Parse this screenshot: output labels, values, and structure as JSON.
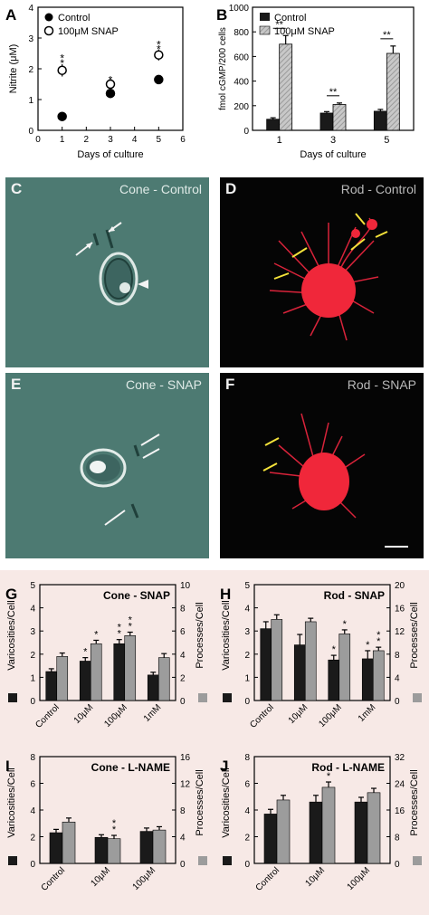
{
  "colors": {
    "bar_black": "#1a1a1a",
    "bar_gray": "#9c9c9c",
    "bar_hatch": "#9a9a9a",
    "phase_bg": "#4d7a72",
    "fluor_bg": "#050505",
    "fluor_cell": "#f0273a",
    "arrow_yellow": "#f4e23a",
    "panel_bg_pink": "#f7e9e6"
  },
  "micrographs": [
    {
      "letter": "C",
      "title": "Cone - Control",
      "style": "phase"
    },
    {
      "letter": "D",
      "title": "Rod - Control",
      "style": "fluor"
    },
    {
      "letter": "E",
      "title": "Cone - SNAP",
      "style": "phase"
    },
    {
      "letter": "F",
      "title": "Rod - SNAP",
      "style": "fluor"
    }
  ],
  "chart_data": [
    {
      "panel": "A",
      "type": "scatter",
      "xlabel": "Days of culture",
      "ylabel": "Nitrite (μM)",
      "xlim": [
        0,
        6
      ],
      "ylim": [
        0,
        4
      ],
      "xticks": [
        "0",
        "1",
        "2",
        "3",
        "4",
        "5",
        "6"
      ],
      "yticks": [
        "0",
        "1",
        "2",
        "3",
        "4"
      ],
      "legend": [
        "Control",
        "100μM SNAP"
      ],
      "series": [
        {
          "name": "Control",
          "marker": "filled",
          "x": [
            1,
            3,
            5
          ],
          "y": [
            0.45,
            1.2,
            1.65
          ],
          "err": [
            0.12,
            0.1,
            0.12
          ]
        },
        {
          "name": "100μM SNAP",
          "marker": "open",
          "x": [
            1,
            3,
            5
          ],
          "y": [
            1.95,
            1.5,
            2.45
          ],
          "err": [
            0.2,
            0.12,
            0.18
          ]
        }
      ],
      "annotations": [
        {
          "x": 1,
          "y": 2.3,
          "text": "*"
        },
        {
          "x": 1,
          "y": 2.45,
          "text": "*"
        },
        {
          "x": 3,
          "y": 1.75,
          "text": "*"
        },
        {
          "x": 5,
          "y": 2.75,
          "text": "*"
        },
        {
          "x": 5,
          "y": 2.9,
          "text": "*"
        }
      ]
    },
    {
      "panel": "B",
      "type": "bar",
      "xlabel": "Days of culture",
      "ylabel": "fmol cGMP/200 cells",
      "ylim": [
        0,
        1000
      ],
      "yticks": [
        "0",
        "200",
        "400",
        "600",
        "800",
        "1000"
      ],
      "categories": [
        "1",
        "3",
        "5"
      ],
      "legend": [
        "Control",
        "100μM SNAP"
      ],
      "series": [
        {
          "name": "Control",
          "values": [
            90,
            140,
            155
          ],
          "err": [
            12,
            12,
            15
          ]
        },
        {
          "name": "100μM SNAP",
          "values": [
            700,
            210,
            625
          ],
          "err": [
            70,
            12,
            60
          ]
        }
      ],
      "annotations": [
        "**",
        "**",
        "**"
      ]
    },
    {
      "panel": "G",
      "type": "bar",
      "title": "Cone - SNAP",
      "ylabel": "Varicosities/Cell",
      "y2label": "Processes/Cell",
      "ylim": [
        0,
        5
      ],
      "y2lim": [
        0,
        10
      ],
      "yticks": [
        "0",
        "1",
        "2",
        "3",
        "4",
        "5"
      ],
      "y2ticks": [
        "0",
        "2",
        "4",
        "6",
        "8",
        "10"
      ],
      "categories": [
        "Control",
        "10μM",
        "100μM",
        "1mM"
      ],
      "series": [
        {
          "name": "Varicosities",
          "axis": "left",
          "values": [
            1.25,
            1.7,
            2.45,
            1.1
          ],
          "err": [
            0.12,
            0.15,
            0.18,
            0.12
          ]
        },
        {
          "name": "Processes",
          "axis": "right",
          "values": [
            3.8,
            4.9,
            5.6,
            3.7
          ],
          "err": [
            0.3,
            0.3,
            0.3,
            0.35
          ]
        }
      ],
      "annotations": [
        {
          "cat": 1,
          "series": 0,
          "text": "*"
        },
        {
          "cat": 1,
          "series": 1,
          "text": "*"
        },
        {
          "cat": 2,
          "series": 0,
          "text": "**"
        },
        {
          "cat": 2,
          "series": 1,
          "text": "**"
        }
      ]
    },
    {
      "panel": "H",
      "type": "bar",
      "title": "Rod - SNAP",
      "ylabel": "Varicosities/Cell",
      "y2label": "Processes/Cell",
      "ylim": [
        0,
        5
      ],
      "y2lim": [
        0,
        20
      ],
      "yticks": [
        "0",
        "1",
        "2",
        "3",
        "4",
        "5"
      ],
      "y2ticks": [
        "0",
        "4",
        "8",
        "12",
        "16",
        "20"
      ],
      "categories": [
        "Control",
        "10μM",
        "100μM",
        "1mM"
      ],
      "series": [
        {
          "name": "Varicosities",
          "axis": "left",
          "values": [
            3.1,
            2.4,
            1.75,
            1.8
          ],
          "err": [
            0.3,
            0.45,
            0.2,
            0.35
          ]
        },
        {
          "name": "Processes",
          "axis": "right",
          "values": [
            14,
            13.6,
            11.5,
            8.6
          ],
          "err": [
            0.8,
            0.6,
            0.7,
            0.6
          ]
        }
      ],
      "annotations": [
        {
          "cat": 2,
          "series": 0,
          "text": "*"
        },
        {
          "cat": 2,
          "series": 1,
          "text": "*"
        },
        {
          "cat": 3,
          "series": 0,
          "text": "*"
        },
        {
          "cat": 3,
          "series": 1,
          "text": "**"
        }
      ]
    },
    {
      "panel": "I",
      "type": "bar",
      "title": "Cone - L-NAME",
      "ylabel": "Varicosities/Cell",
      "y2label": "Processes/Cell",
      "ylim": [
        0,
        8
      ],
      "y2lim": [
        0,
        16
      ],
      "yticks": [
        "0",
        "2",
        "4",
        "6",
        "8"
      ],
      "y2ticks": [
        "0",
        "4",
        "8",
        "12",
        "16"
      ],
      "categories": [
        "Control",
        "10μM",
        "100μM"
      ],
      "series": [
        {
          "name": "Varicosities",
          "axis": "left",
          "values": [
            2.3,
            1.95,
            2.4
          ],
          "err": [
            0.25,
            0.2,
            0.25
          ]
        },
        {
          "name": "Processes",
          "axis": "right",
          "values": [
            6.2,
            3.7,
            5.0
          ],
          "err": [
            0.6,
            0.5,
            0.5
          ]
        }
      ],
      "annotations": [
        {
          "cat": 1,
          "series": 1,
          "text": "**"
        }
      ]
    },
    {
      "panel": "J",
      "type": "bar",
      "title": "Rod - L-NAME",
      "ylabel": "Varicosities/Cell",
      "y2label": "Processes/Cell",
      "ylim": [
        0,
        8
      ],
      "y2lim": [
        0,
        32
      ],
      "yticks": [
        "0",
        "2",
        "4",
        "6",
        "8"
      ],
      "y2ticks": [
        "0",
        "8",
        "16",
        "24",
        "32"
      ],
      "categories": [
        "Control",
        "10μM",
        "100μM"
      ],
      "series": [
        {
          "name": "Varicosities",
          "axis": "left",
          "values": [
            3.7,
            4.6,
            4.6
          ],
          "err": [
            0.35,
            0.5,
            0.35
          ]
        },
        {
          "name": "Processes",
          "axis": "right",
          "values": [
            19,
            22.8,
            21.2
          ],
          "err": [
            1.4,
            1.6,
            1.3
          ]
        }
      ],
      "annotations": [
        {
          "cat": 1,
          "series": 1,
          "text": "*"
        }
      ]
    }
  ]
}
